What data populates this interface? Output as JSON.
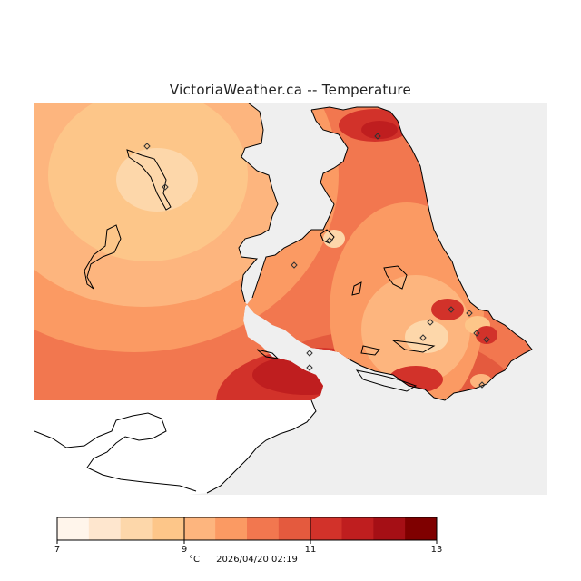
{
  "header": {
    "title": "VictoriaWeather.ca -- Temperature"
  },
  "map": {
    "stations_count": 14,
    "palette": [
      "#fff5eb",
      "#fee6ce",
      "#fdd7aa",
      "#fdc689",
      "#fdb57e",
      "#fb9a63",
      "#f2774f",
      "#e45a3e",
      "#d2322a",
      "#bf1e1f",
      "#a50f15",
      "#7f0000"
    ]
  },
  "legend": {
    "ticks": [
      "7",
      "9",
      "11",
      "13"
    ],
    "unit": "°C",
    "timestamp": "2026/04/20 02:19",
    "min": 7,
    "max": 13,
    "steps": 12
  }
}
